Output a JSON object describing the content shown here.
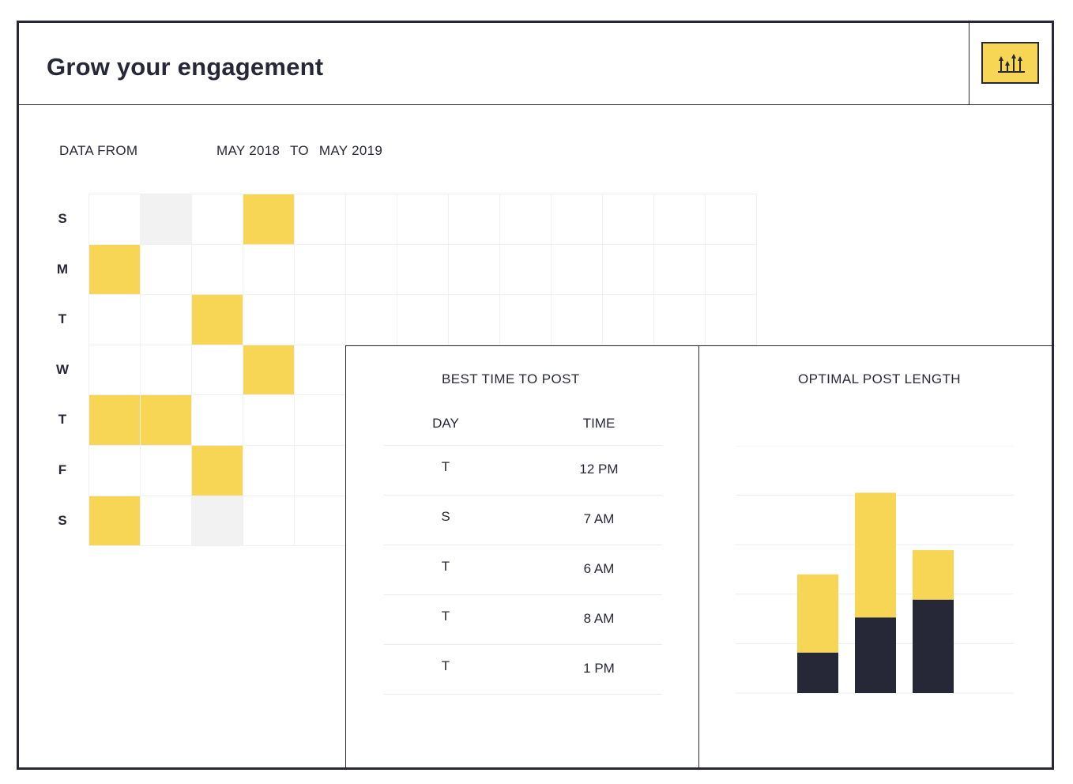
{
  "header": {
    "title": "Grow your engagement",
    "icon": "bar-arrows-up-icon"
  },
  "range": {
    "label": "DATA FROM",
    "from": "MAY 2018",
    "to_word": "TO",
    "to": "MAY 2019"
  },
  "heatmap": {
    "days": [
      "S",
      "M",
      "T",
      "W",
      "T",
      "F",
      "S"
    ],
    "columns": 13,
    "cells": [
      [
        0,
        2,
        0,
        1,
        0,
        0,
        0,
        0,
        0,
        0,
        0,
        0,
        0
      ],
      [
        1,
        0,
        0,
        0,
        0,
        0,
        0,
        0,
        0,
        0,
        0,
        0,
        0
      ],
      [
        0,
        0,
        1,
        0,
        0,
        0,
        0,
        0,
        0,
        0,
        0,
        0,
        0
      ],
      [
        0,
        0,
        0,
        1,
        0,
        0,
        0,
        0,
        0,
        0,
        0,
        0,
        0
      ],
      [
        1,
        1,
        0,
        0,
        0,
        0,
        0,
        0,
        0,
        0,
        0,
        0,
        0
      ],
      [
        0,
        0,
        1,
        0,
        0,
        0,
        0,
        0,
        0,
        0,
        0,
        0,
        0
      ],
      [
        1,
        0,
        2,
        0,
        0,
        0,
        0,
        0,
        0,
        0,
        0,
        0,
        0
      ]
    ],
    "colors": {
      "highlight": "#f7d655",
      "muted": "#f2f2f2"
    }
  },
  "best_time": {
    "title": "BEST TIME TO POST",
    "col_day": "DAY",
    "col_time": "TIME",
    "rows": [
      {
        "day": "T",
        "time": "12 PM"
      },
      {
        "day": "S",
        "time": "7 AM"
      },
      {
        "day": "T",
        "time": "6 AM"
      },
      {
        "day": "T",
        "time": "8 AM"
      },
      {
        "day": "T",
        "time": "1 PM"
      }
    ]
  },
  "optimal_length": {
    "title": "OPTIMAL POST  LENGTH"
  },
  "chart_data": {
    "type": "bar",
    "stacked": true,
    "categories": [
      "",
      "",
      ""
    ],
    "series": [
      {
        "values": [
          0.82,
          1.53,
          1.89
        ]
      },
      {
        "values": [
          1.58,
          2.52,
          1.0
        ]
      }
    ],
    "ylim": [
      0,
      5
    ],
    "grid": true,
    "colors": [
      "#262838",
      "#f7d655"
    ]
  }
}
